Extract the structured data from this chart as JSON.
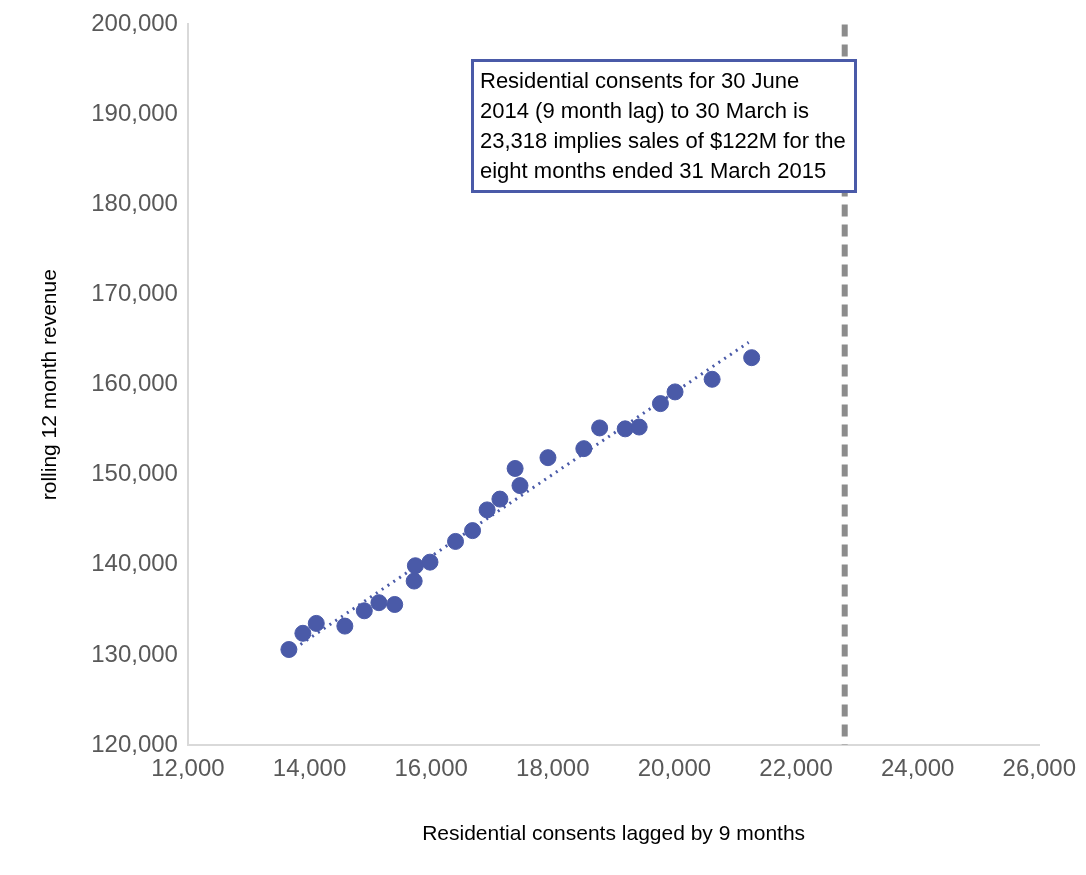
{
  "chart_data": {
    "type": "scatter",
    "xlabel": "Residential consents lagged by 9 months",
    "ylabel": "rolling 12 month revenue",
    "annotations": [
      "Residential consents for 30 June 2014 (9 month lag) to 30 March is 23,318 implies sales of $122M for the eight months ended 31 March 2015"
    ],
    "xlim": [
      12000,
      26000
    ],
    "xticks": [
      {
        "value": 12000,
        "label": "12,000"
      },
      {
        "value": 14000,
        "label": "14,000"
      },
      {
        "value": 16000,
        "label": "16,000"
      },
      {
        "value": 18000,
        "label": "18,000"
      },
      {
        "value": 20000,
        "label": "20,000"
      },
      {
        "value": 22000,
        "label": "22,000"
      },
      {
        "value": 24000,
        "label": "24,000"
      },
      {
        "value": 26000,
        "label": "26,000"
      }
    ],
    "ylim": [
      120000,
      200000
    ],
    "yticks": [
      {
        "value": 120000,
        "label": "120,000"
      },
      {
        "value": 130000,
        "label": "130,000"
      },
      {
        "value": 140000,
        "label": "140,000"
      },
      {
        "value": 150000,
        "label": "150,000"
      },
      {
        "value": 160000,
        "label": "160,000"
      },
      {
        "value": 170000,
        "label": "170,000"
      },
      {
        "value": 180000,
        "label": "180,000"
      },
      {
        "value": 190000,
        "label": "190,000"
      },
      {
        "value": 200000,
        "label": "200,000"
      }
    ],
    "grid": false,
    "legend": false,
    "marker": "circle",
    "ref_lines": [
      {
        "axis": "x",
        "value": 22800,
        "color": "#8c8c8c",
        "line_style": "dashed"
      }
    ],
    "series": [
      {
        "type": "scatter",
        "color": "#4a5aa8",
        "x": [
          13660,
          13890,
          14110,
          14580,
          14900,
          15140,
          15400,
          15720,
          15740,
          15980,
          16400,
          16680,
          16920,
          17130,
          17380,
          17460,
          17920,
          18510,
          18770,
          19190,
          19420,
          19770,
          20010,
          20620,
          21270
        ],
        "values": [
          130600,
          132400,
          133500,
          133200,
          134900,
          135800,
          135600,
          138200,
          139900,
          140300,
          142600,
          143800,
          146100,
          147300,
          150700,
          148800,
          151900,
          152900,
          155200,
          155100,
          155300,
          157900,
          159200,
          160600,
          163000
        ]
      },
      {
        "type": "line",
        "color": "#4a5aa8",
        "line_style": "dotted",
        "marker": "none",
        "x": [
          13660,
          21220
        ],
        "values": [
          130300,
          164700
        ]
      }
    ]
  }
}
